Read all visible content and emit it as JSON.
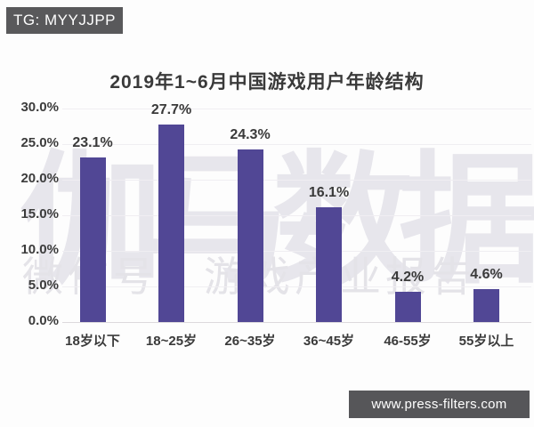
{
  "badge": {
    "label": "TG: MYYJJPP",
    "bg_color": "#59595b"
  },
  "footer": {
    "url": "www.press-filters.com",
    "bg_color": "#565659"
  },
  "watermark": {
    "line1": "伽马数据",
    "line2": "微信号：游戏产业报告"
  },
  "chart_data": {
    "type": "bar",
    "title": "2019年1~6月中国游戏用户年龄结构",
    "categories": [
      "18岁以下",
      "18~25岁",
      "26~35岁",
      "36~45岁",
      "46-55岁",
      "55岁以上"
    ],
    "values": [
      23.1,
      27.7,
      24.3,
      16.1,
      4.2,
      4.6
    ],
    "value_labels": [
      "23.1%",
      "27.7%",
      "24.3%",
      "16.1%",
      "4.2%",
      "4.6%"
    ],
    "xlabel": "",
    "ylabel": "",
    "ylim": [
      0,
      30
    ],
    "yticks": [
      0,
      5,
      10,
      15,
      20,
      25,
      30
    ],
    "ytick_labels": [
      "0.0%",
      "5.0%",
      "10.0%",
      "15.0%",
      "20.0%",
      "25.0%",
      "30.0%"
    ],
    "grid": true,
    "legend": false,
    "bar_color": "#514795"
  }
}
